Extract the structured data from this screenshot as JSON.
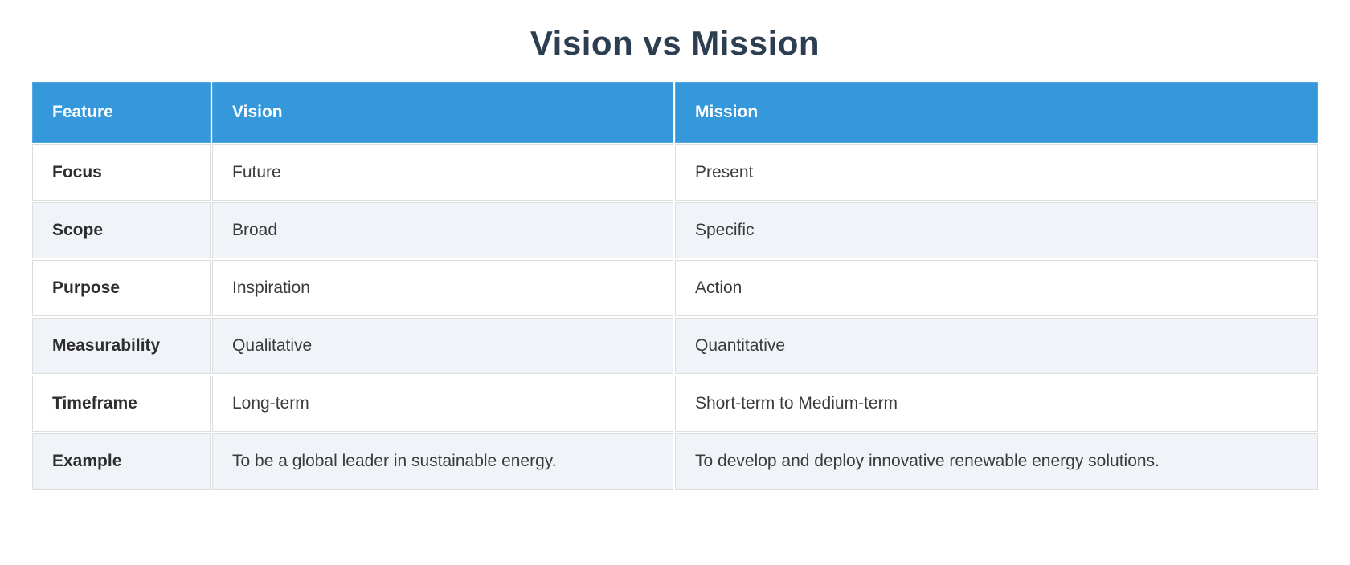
{
  "page_title": "Vision vs Mission",
  "chart_data": {
    "type": "table",
    "title": "Vision vs Mission",
    "columns": [
      "Feature",
      "Vision",
      "Mission"
    ],
    "rows": [
      [
        "Focus",
        "Future",
        "Present"
      ],
      [
        "Scope",
        "Broad",
        "Specific"
      ],
      [
        "Purpose",
        "Inspiration",
        "Action"
      ],
      [
        "Measurability",
        "Qualitative",
        "Quantitative"
      ],
      [
        "Timeframe",
        "Long-term",
        "Short-term to Medium-term"
      ],
      [
        "Example",
        "To be a global leader in sustainable energy.",
        "To develop and deploy innovative renewable energy solutions."
      ]
    ],
    "layout_hints": {
      "header_position": "top",
      "row_striping": "alternating",
      "grid": true
    }
  },
  "colors": {
    "header_bg": "#3498db",
    "header_text": "#ffffff",
    "row_bg_odd": "#ffffff",
    "row_bg_even": "#f0f3f8",
    "title_color": "#2c3e50",
    "cell_border": "#dddddd",
    "body_text": "#3b3b3b"
  }
}
